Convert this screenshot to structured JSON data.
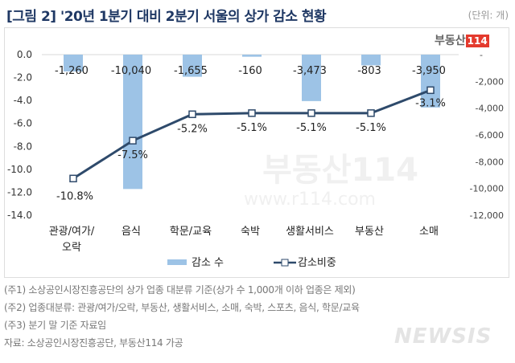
{
  "title": "[그림 2] '20년 1분기 대비 2분기 서울의 상가 감소 현황",
  "unit": "(단위: 개)",
  "logo": {
    "text": "부동산",
    "badge": "114"
  },
  "watermark": "www.r114.com",
  "chart_data": {
    "type": "bar+line",
    "categories": [
      "관광/여가/오락",
      "음식",
      "학문/교육",
      "숙박",
      "생활서비스",
      "부동산",
      "소매"
    ],
    "category_lines": [
      [
        "관광/여가/",
        "오락"
      ],
      [
        "음식"
      ],
      [
        "학문/교육"
      ],
      [
        "숙박"
      ],
      [
        "생활서비스"
      ],
      [
        "부동산"
      ],
      [
        "소매"
      ]
    ],
    "series": [
      {
        "name": "감소 수",
        "type": "bar",
        "axis": "right",
        "values": [
          -1260,
          -10040,
          -1655,
          -160,
          -3473,
          -803,
          -3950
        ],
        "labels": [
          "-1,260",
          "-10,040",
          "-1,655",
          "-160",
          "-3,473",
          "-803",
          "-3,950"
        ],
        "color": "#9dc3e6"
      },
      {
        "name": "감소비중",
        "type": "line",
        "axis": "left",
        "values": [
          -10.8,
          -7.5,
          -5.2,
          -5.1,
          -5.1,
          -5.1,
          -3.1
        ],
        "labels": [
          "-10.8%",
          "-7.5%",
          "-5.2%",
          "-5.1%",
          "-5.1%",
          "-5.1%",
          "-3.1%"
        ],
        "color": "#2e4a6b"
      }
    ],
    "left_axis": {
      "range": [
        -14,
        0
      ],
      "ticks": [
        "0.0",
        "-2.0",
        "-4.0",
        "-6.0",
        "-8.0",
        "-10.0",
        "-12.0",
        "-14.0"
      ]
    },
    "right_axis": {
      "range": [
        -12000,
        0
      ],
      "ticks": [
        "-",
        "-2,000",
        "-4,000",
        "-6,000",
        "-8,000",
        "-10,000",
        "-12,000"
      ]
    },
    "legend": "bottom",
    "grid": false
  },
  "notes": [
    "(주1) 소상공인시장진흥공단의 상가 업종 대분류 기준(상가 수 1,000개 이하 업종은 제외)",
    "(주2) 업종대분류: 관광/여가/오락, 부동산, 생활서비스, 소매, 숙박, 스포츠, 음식, 학문/교육",
    "(주3) 분기 말 기준 자료임",
    "자료: 소상공인시장진흥공단, 부동산114 가공"
  ],
  "newsis": "NEWSIS"
}
